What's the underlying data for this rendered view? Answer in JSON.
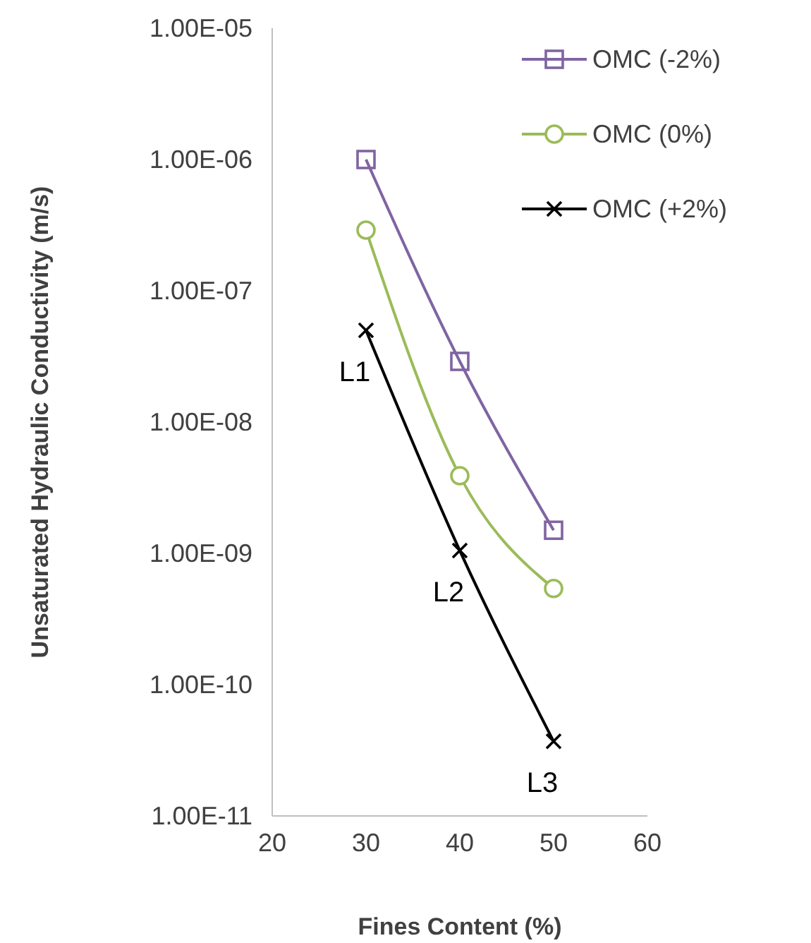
{
  "chart_data": {
    "type": "line",
    "xlabel": "Fines Content (%)",
    "ylabel": "Unsaturated Hydraulic Conductivity (m/s)",
    "x": [
      30,
      40,
      50
    ],
    "series": [
      {
        "name": "OMC (-2%)",
        "color": "#8064a2",
        "marker": "square",
        "values": [
          1e-06,
          2.9e-08,
          1.5e-09
        ]
      },
      {
        "name": "OMC (0%)",
        "color": "#9bbb59",
        "marker": "circle",
        "values": [
          2.9e-07,
          3.9e-09,
          5.4e-10
        ]
      },
      {
        "name": "OMC (+2%)",
        "color": "#000000",
        "marker": "cross",
        "values": [
          5e-08,
          1.05e-09,
          3.7e-11
        ]
      }
    ],
    "log": true,
    "xlim": [
      20,
      60
    ],
    "xticks": [
      20,
      30,
      40,
      50,
      60
    ],
    "ylim": [
      1e-11,
      1e-05
    ],
    "yticks": [
      {
        "value": 1e-11,
        "label": "1.00E-11"
      },
      {
        "value": 1e-10,
        "label": "1.00E-10"
      },
      {
        "value": 1e-09,
        "label": "1.00E-09"
      },
      {
        "value": 1e-08,
        "label": "1.00E-08"
      },
      {
        "value": 1e-07,
        "label": "1.00E-07"
      },
      {
        "value": 1e-06,
        "label": "1.00E-06"
      },
      {
        "value": 1e-05,
        "label": "1.00E-05"
      }
    ],
    "annotations": [
      {
        "text": "L1",
        "x": 30,
        "y": 5e-08
      },
      {
        "text": "L2",
        "x": 40,
        "y": 1.05e-09
      },
      {
        "text": "L3",
        "x": 50,
        "y": 3.7e-11
      }
    ],
    "grid": false,
    "legend": "top right",
    "line_style": "solid"
  }
}
